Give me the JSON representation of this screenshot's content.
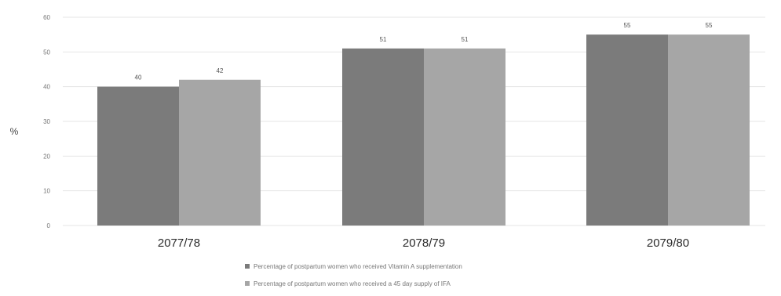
{
  "chart_data": {
    "type": "bar",
    "title": "",
    "xlabel": "",
    "ylabel": "%",
    "ylim": [
      0,
      60
    ],
    "yticks": [
      0,
      10,
      20,
      30,
      40,
      50,
      60
    ],
    "grid": true,
    "legend_position": "bottom",
    "categories": [
      "2077/78",
      "2078/79",
      "2079/80"
    ],
    "series": [
      {
        "name": "Percentage of postpartum women who received Vitamin A supplementation",
        "values": [
          40,
          51,
          55
        ],
        "color": "#7b7b7b"
      },
      {
        "name": "Percentage of postpartum women who received a 45 day supply of IFA",
        "values": [
          42,
          51,
          55
        ],
        "color": "#a6a6a6"
      }
    ]
  }
}
